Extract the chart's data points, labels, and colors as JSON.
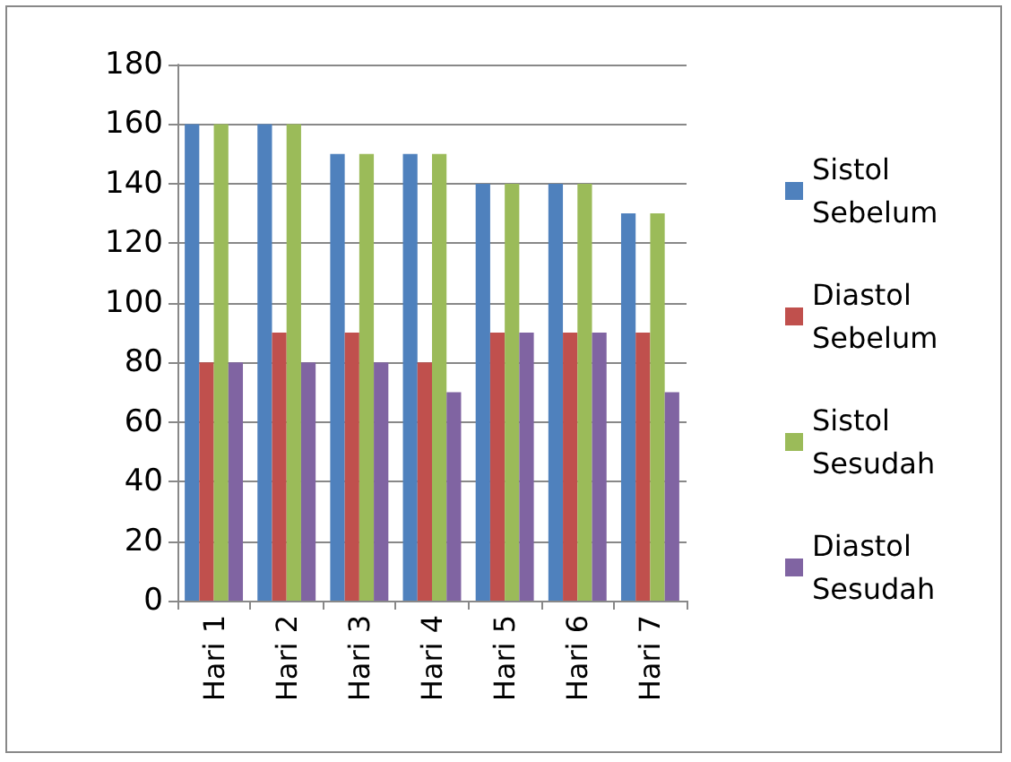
{
  "chart_data": {
    "type": "bar",
    "categories": [
      "Hari 1",
      "Hari 2",
      "Hari 3",
      "Hari 4",
      "Hari 5",
      "Hari 6",
      "Hari 7"
    ],
    "series": [
      {
        "name": "Sistol Sebelum",
        "color": "#4f81bd",
        "values": [
          160,
          160,
          150,
          150,
          140,
          140,
          130
        ]
      },
      {
        "name": "Diastol Sebelum",
        "color": "#c0504d",
        "values": [
          80,
          90,
          90,
          80,
          90,
          90,
          90
        ]
      },
      {
        "name": "Sistol Sesudah",
        "color": "#9bbb59",
        "values": [
          160,
          160,
          150,
          150,
          140,
          140,
          130
        ]
      },
      {
        "name": "Diastol Sesudah",
        "color": "#8064a2",
        "values": [
          80,
          80,
          80,
          70,
          90,
          90,
          70
        ]
      }
    ],
    "ylim": [
      0,
      180
    ],
    "yticks": [
      0,
      20,
      40,
      60,
      80,
      100,
      120,
      140,
      160,
      180
    ],
    "grid": "y",
    "legend": "right"
  }
}
